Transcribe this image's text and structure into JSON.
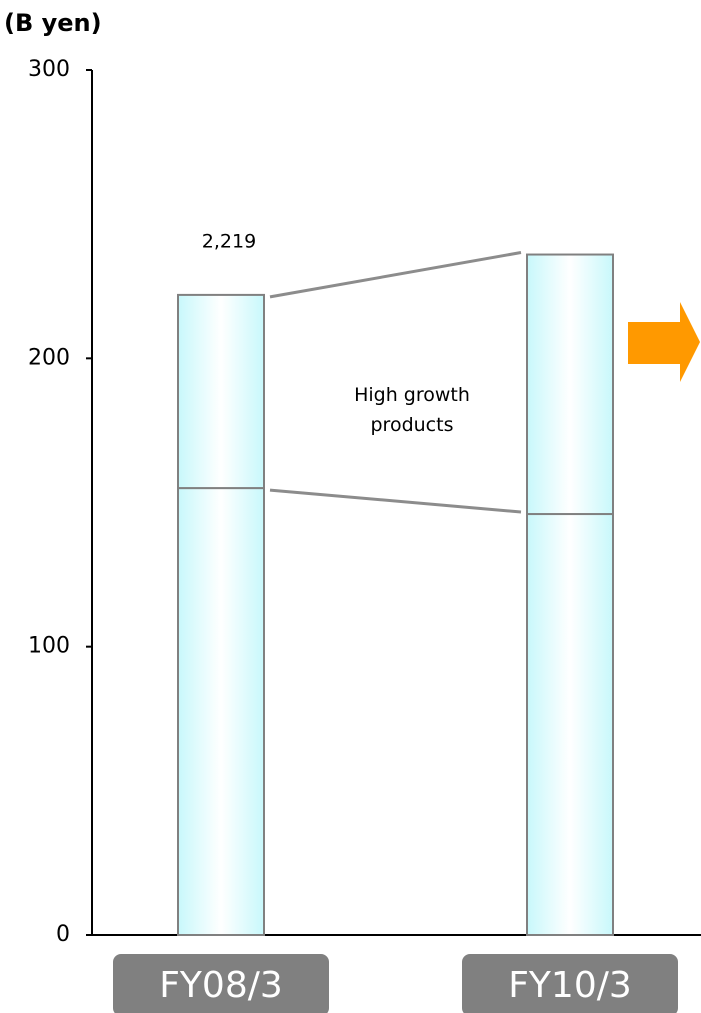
{
  "chart_data": {
    "type": "stacked_bar",
    "y_label": "(B yen)",
    "categories": [
      "FY08/3",
      "FY10/3"
    ],
    "series": [
      {
        "color": "#c8f8fb",
        "values": [
          155,
          146
        ]
      },
      {
        "name": "High growth products",
        "color": "#c8f8fb",
        "values": [
          67,
          90
        ]
      }
    ],
    "annotations": [
      "2,219"
    ],
    "ylim": [
      0,
      300
    ],
    "yticks": [
      0,
      100,
      200,
      300
    ],
    "grid": false
  }
}
